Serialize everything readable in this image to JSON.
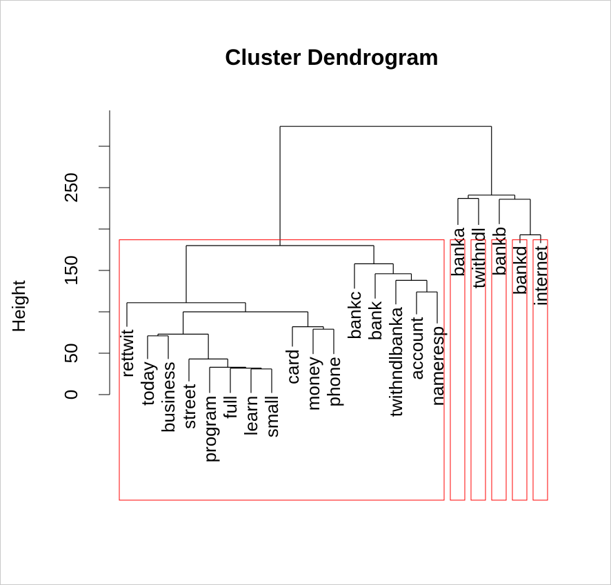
{
  "chart_data": {
    "type": "dendrogram",
    "title": "Cluster Dendrogram",
    "ylabel": "Height",
    "xlabel": "",
    "y_ticks": [
      0,
      50,
      100,
      150,
      200,
      250,
      300
    ],
    "y_tick_labels": [
      "0",
      "50",
      "",
      "150",
      "",
      "250",
      ""
    ],
    "ylim": [
      0,
      310
    ],
    "leaves": [
      {
        "label": "rettwit",
        "height": 82
      },
      {
        "label": "today",
        "height": 43
      },
      {
        "label": "business",
        "height": 43
      },
      {
        "label": "street",
        "height": 16
      },
      {
        "label": "program",
        "height": 2
      },
      {
        "label": "full",
        "height": 2
      },
      {
        "label": "learn",
        "height": 2
      },
      {
        "label": "small",
        "height": 2
      },
      {
        "label": "card",
        "height": 58
      },
      {
        "label": "money",
        "height": 49
      },
      {
        "label": "phone",
        "height": 49
      },
      {
        "label": "bankc",
        "height": 128
      },
      {
        "label": "bank",
        "height": 116
      },
      {
        "label": "twithndlbanka",
        "height": 109
      },
      {
        "label": "account",
        "height": 97
      },
      {
        "label": "nameresp",
        "height": 86
      },
      {
        "label": "banka",
        "height": 205
      },
      {
        "label": "twithndl",
        "height": 205
      },
      {
        "label": "bankb",
        "height": 206
      },
      {
        "label": "bankd",
        "height": 183
      },
      {
        "label": "internet",
        "height": 183
      }
    ],
    "merges": [
      {
        "left": "L6",
        "right": "L7",
        "height": 31
      },
      {
        "left": "L5",
        "right": "M1",
        "height": 32
      },
      {
        "left": "L4",
        "right": "M2",
        "height": 33
      },
      {
        "left": "L3",
        "right": "M3",
        "height": 43
      },
      {
        "left": "L9",
        "right": "L10",
        "height": 79
      },
      {
        "left": "L2",
        "right": "L1",
        "height": 71
      },
      {
        "left": "M4",
        "right": "M6",
        "height": 73
      },
      {
        "left": "M5",
        "right": "L8",
        "height": 82
      },
      {
        "left": "M7",
        "right": "M8",
        "height": 100
      },
      {
        "left": "M9",
        "right": "L0",
        "height": 111
      },
      {
        "left": "L14",
        "right": "L15",
        "height": 124
      },
      {
        "left": "L13",
        "right": "M11",
        "height": 138
      },
      {
        "left": "L12",
        "right": "M12",
        "height": 146
      },
      {
        "left": "L11",
        "right": "M13",
        "height": 158
      },
      {
        "left": "M10",
        "right": "M14",
        "height": 180
      },
      {
        "left": "L19",
        "right": "L20",
        "height": 193
      },
      {
        "left": "L16",
        "right": "L17",
        "height": 237
      },
      {
        "left": "L18",
        "right": "M16",
        "height": 236
      },
      {
        "left": "M17",
        "right": "M18",
        "height": 241
      },
      {
        "left": "M15",
        "right": "M19",
        "height": 324
      }
    ],
    "cluster_boxes": [
      {
        "from": 0,
        "to": 15
      },
      {
        "from": 16,
        "to": 16
      },
      {
        "from": 17,
        "to": 17
      },
      {
        "from": 18,
        "to": 18
      },
      {
        "from": 19,
        "to": 19
      },
      {
        "from": 20,
        "to": 20
      }
    ],
    "colors": {
      "tree": "#000000",
      "cluster_box": "#ff0000",
      "border": "#c9c9c9"
    },
    "grid": false,
    "legend": "none"
  }
}
